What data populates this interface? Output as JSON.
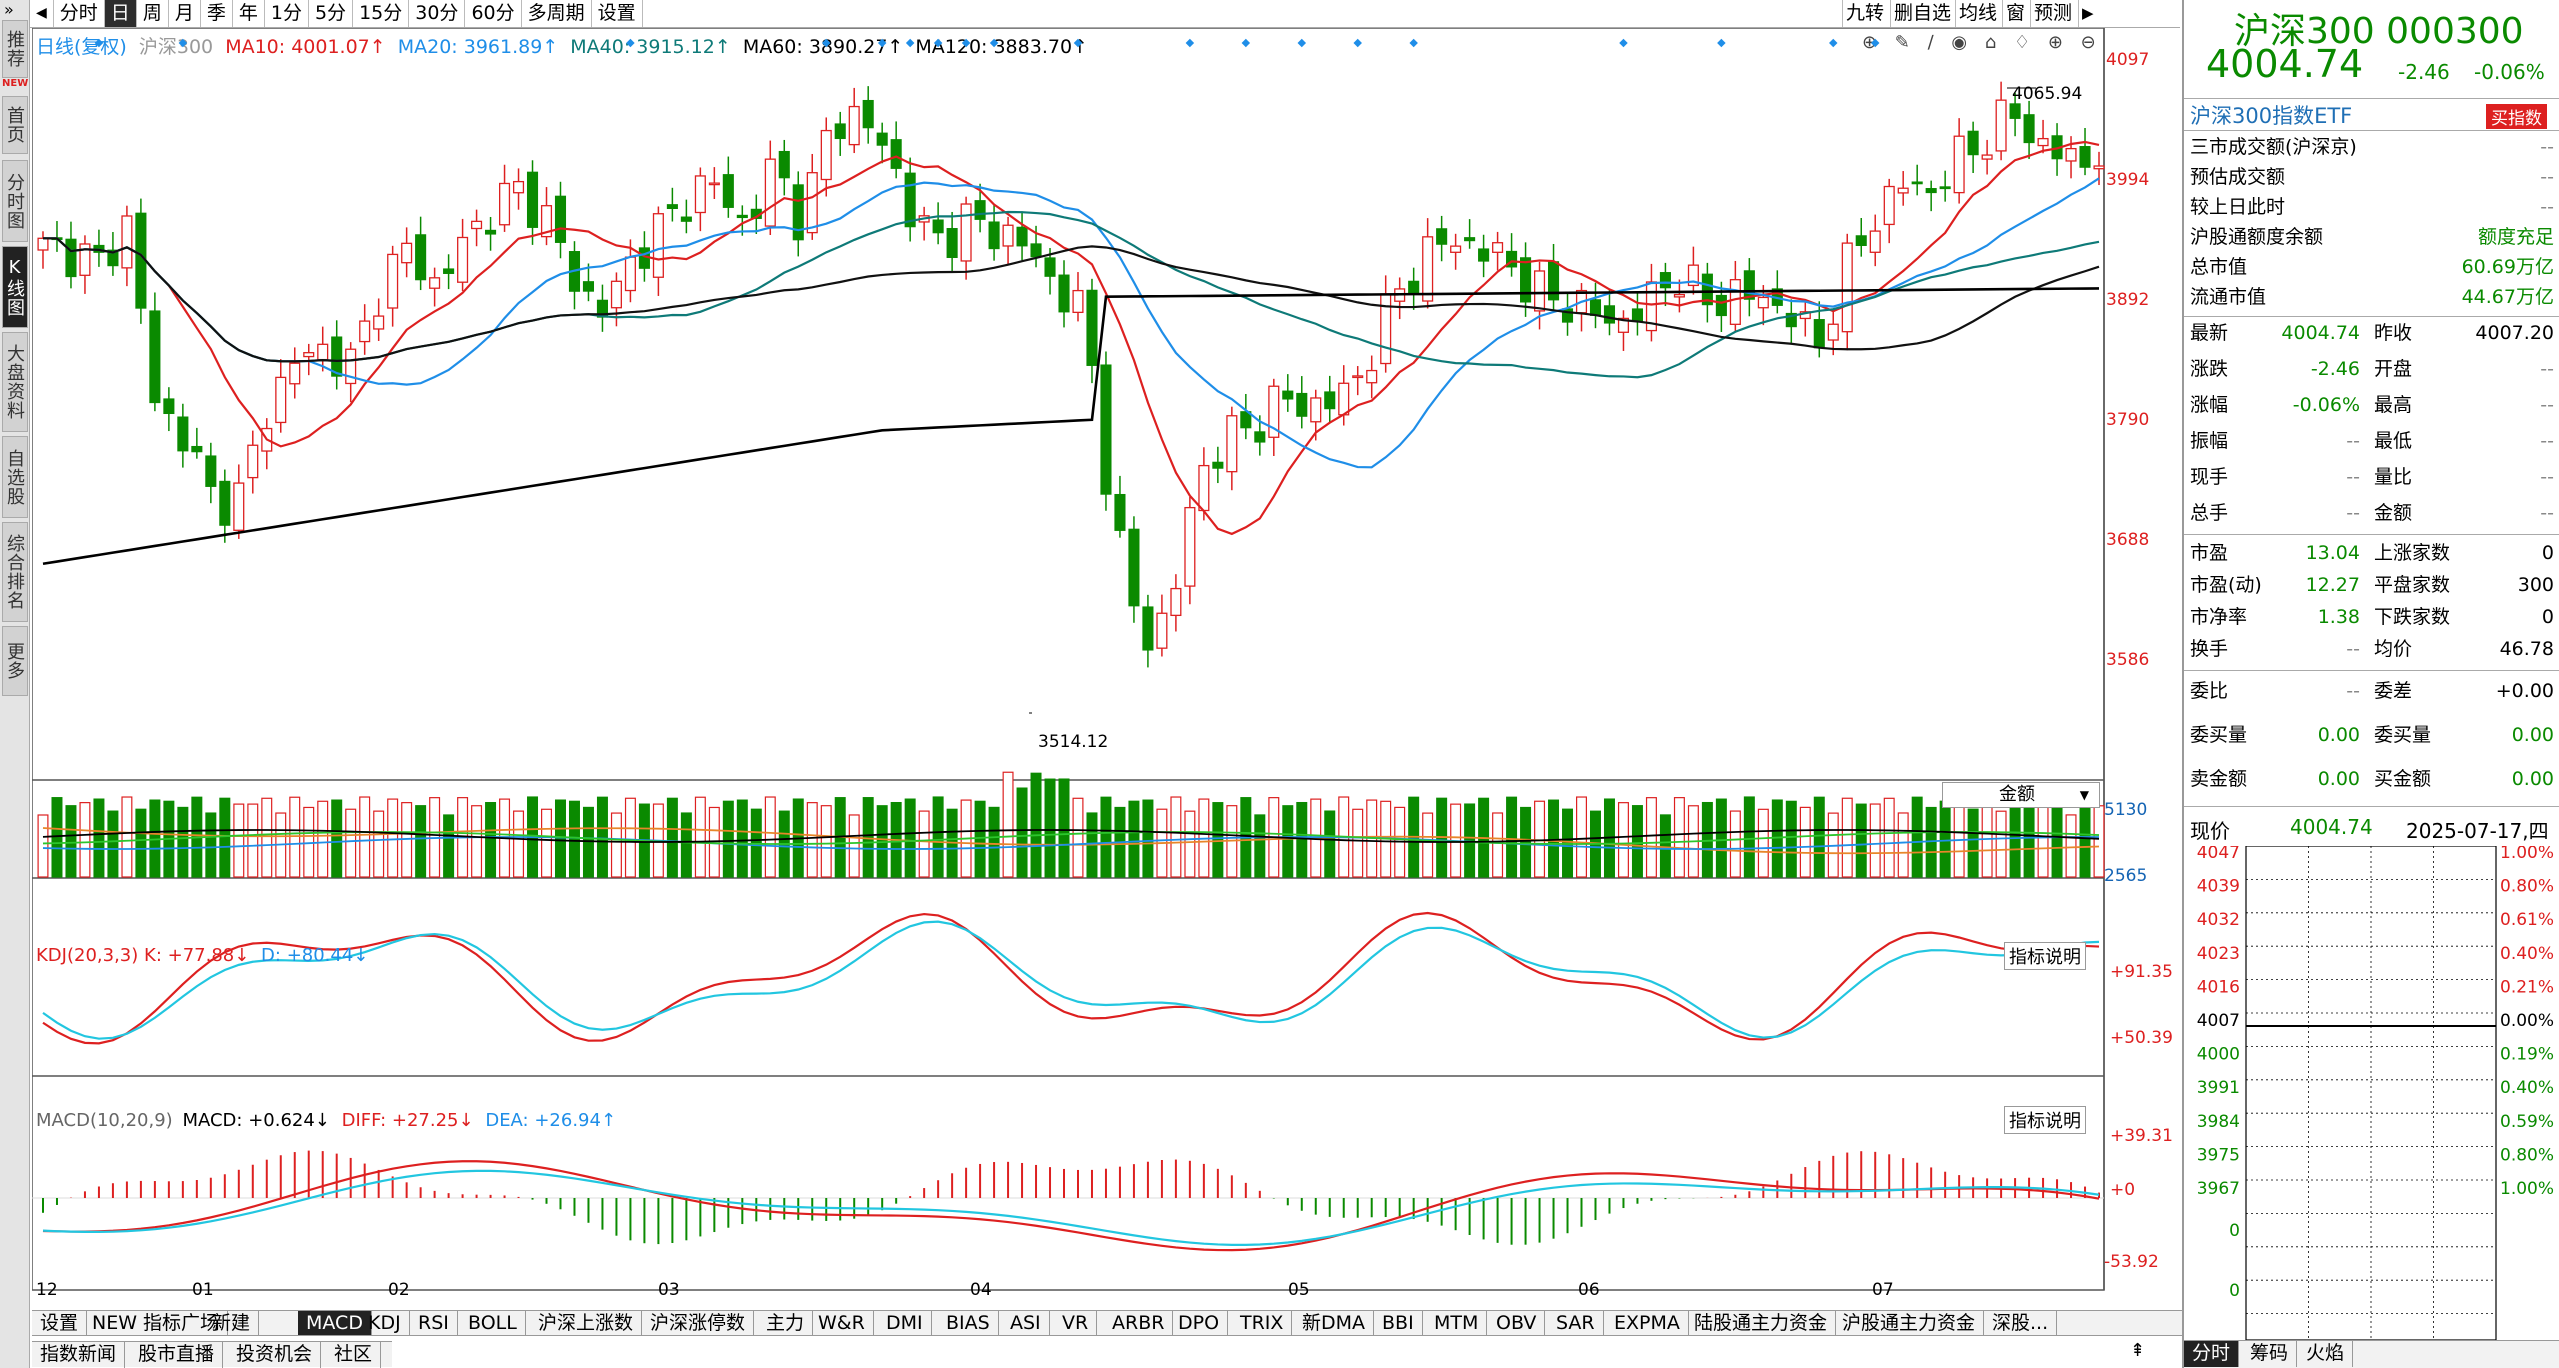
{
  "nav": {
    "prev": "◀",
    "next": "▶",
    "tabs": [
      "分时",
      "日",
      "周",
      "月",
      "季",
      "年",
      "1分",
      "5分",
      "15分",
      "30分",
      "60分",
      "多周期",
      "设置"
    ],
    "active": 1
  },
  "sidebar": [
    {
      "label": "推荐"
    },
    {
      "label": "首页"
    },
    {
      "label": "分时图"
    },
    {
      "label": "K线图"
    },
    {
      "label": "大盘资料"
    },
    {
      "label": "自选股"
    },
    {
      "label": "综合排名"
    },
    {
      "label": "更多"
    }
  ],
  "sidebar_new": "NEW",
  "tools": {
    "items": [
      "九转",
      "删自选",
      "均线",
      "窗",
      "预测"
    ]
  },
  "legend": {
    "prefix": "日线(复权)",
    "name": "沪深300",
    "ma10": "MA10: 4001.07↑",
    "ma20": "MA20: 3961.89↑",
    "ma40": "MA40: 3915.12↑",
    "ma60": "MA60: 3890.27↑",
    "ma120": "MA120: 3883.70↑"
  },
  "price_axis": [
    "4097",
    "3994",
    "3892",
    "3790",
    "3688",
    "3586"
  ],
  "annotations": {
    "high": "4065.94",
    "low": "3514.12"
  },
  "amount": {
    "selector": "金额",
    "axis_top": "5130",
    "axis_mid": "2565"
  },
  "kdj": {
    "label": "KDJ(20,3,3)",
    "k": "K: +77.88↓",
    "d": "D: +80.44↓",
    "axis_top": "+91.35",
    "axis_mid": "+50.39",
    "explain": "指标说明"
  },
  "macd": {
    "label": "MACD(10,20,9)",
    "macd": "MACD: +0.624↓",
    "diff": "DIFF: +27.25↓",
    "dea": "DEA: +26.94↑",
    "axis_top": "+39.31",
    "axis_mid": "+0",
    "axis_bot": "-53.92",
    "explain": "指标说明"
  },
  "months": [
    "12",
    "01",
    "02",
    "03",
    "04",
    "05",
    "06",
    "07"
  ],
  "bottom_tabs": [
    "设置",
    "NEW 指标广场",
    "新建",
    "MACD",
    "KDJ",
    "RSI",
    "BOLL",
    "沪深上涨数",
    "沪深涨停数",
    "主力",
    "W&R",
    "DMI",
    "BIAS",
    "ASI",
    "VR",
    "ARBR",
    "DPO",
    "TRIX",
    "新DMA",
    "BBI",
    "MTM",
    "OBV",
    "SAR",
    "EXPMA",
    "陆股通主力资金",
    "沪股通主力资金",
    "深股..."
  ],
  "bottom_tabs2": [
    "指数新闻",
    "股市直播",
    "投资机会",
    "社区"
  ],
  "right_panel": {
    "title": "沪深300 000300",
    "price": "4004.74",
    "change": "-2.46",
    "pct": "-0.06%",
    "etf": "沪深300指数ETF",
    "buy": "买指数",
    "info": [
      [
        "三市成交额(沪深京)",
        "--"
      ],
      [
        "预估成交额",
        "--"
      ],
      [
        "较上日此时",
        "--"
      ],
      [
        "沪股通额度余额",
        "额度充足"
      ],
      [
        "总市值",
        "60.69万亿"
      ],
      [
        "流通市值",
        "44.67万亿"
      ]
    ],
    "quote": [
      [
        "最新",
        "4004.74",
        "昨收",
        "4007.20"
      ],
      [
        "涨跌",
        "-2.46",
        "开盘",
        "--"
      ],
      [
        "涨幅",
        "-0.06%",
        "最高",
        "--"
      ],
      [
        "振幅",
        "--",
        "最低",
        "--"
      ],
      [
        "现手",
        "--",
        "量比",
        "--"
      ],
      [
        "总手",
        "--",
        "金额",
        "--"
      ]
    ],
    "stats": [
      [
        "市盈",
        "13.04",
        "上涨家数",
        "0"
      ],
      [
        "市盈(动)",
        "12.27",
        "平盘家数",
        "300"
      ],
      [
        "市净率",
        "1.38",
        "下跌家数",
        "0"
      ],
      [
        "换手",
        "--",
        "均价",
        "46.78"
      ]
    ],
    "order": [
      [
        "委比",
        "--",
        "委差",
        "+0.00"
      ],
      [
        "委买量",
        "0.00",
        "委买量",
        "0.00"
      ],
      [
        "卖金额",
        "0.00",
        "买金额",
        "0.00"
      ]
    ],
    "now_label": "现价",
    "now_price": "4004.74",
    "date": "2025-07-17,四",
    "mini_left": [
      "4047",
      "4039",
      "4032",
      "4023",
      "4016",
      "4007",
      "4000",
      "3991",
      "3984",
      "3975",
      "3967",
      "0",
      "0"
    ],
    "mini_right": [
      "1.00%",
      "0.80%",
      "0.61%",
      "0.40%",
      "0.21%",
      "0.00%",
      "0.19%",
      "0.40%",
      "0.59%",
      "0.80%",
      "1.00%"
    ],
    "tabs": [
      "分时",
      "筹码",
      "火焰"
    ]
  },
  "colors": {
    "up": "#dd2020",
    "down": "#0a8a00",
    "ma10": "#dd2020",
    "ma20": "#1f8ee8",
    "ma40": "#0e7a78",
    "ma60": "#111111",
    "ma120": "#000000"
  }
}
